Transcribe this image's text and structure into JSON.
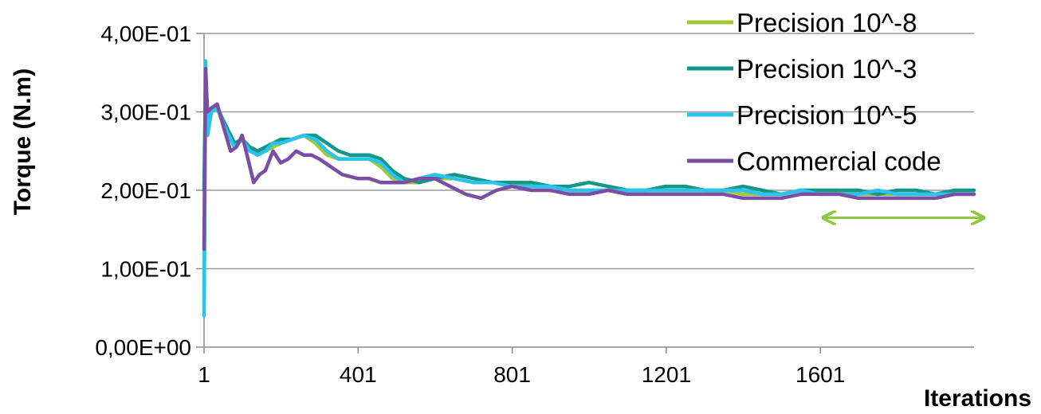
{
  "chart_data": {
    "type": "line",
    "xlabel": "Iterations",
    "ylabel": "Torque (N.m)",
    "xlim": [
      1,
      2000
    ],
    "ylim": [
      0,
      0.4
    ],
    "x_ticks": [
      1,
      401,
      801,
      1201,
      1601
    ],
    "x_tick_labels": [
      "1",
      "401",
      "801",
      "1201",
      "1601"
    ],
    "y_ticks": [
      0,
      0.1,
      0.2,
      0.3,
      0.4
    ],
    "y_tick_labels": [
      "0,00E+00",
      "1,00E-01",
      "2,00E-01",
      "3,00E-01",
      "4,00E-01"
    ],
    "grid": "horizontal",
    "legend_position": "top-right",
    "annotation": {
      "type": "double-arrow",
      "x_range": [
        1600,
        2000
      ],
      "y": 0.165,
      "color": "#8dc63f"
    },
    "series": [
      {
        "name": "Precision 10^-8",
        "color": "#a4c639",
        "x": [
          1,
          5,
          10,
          20,
          35,
          55,
          80,
          100,
          120,
          140,
          160,
          180,
          200,
          230,
          260,
          290,
          320,
          350,
          380,
          400,
          430,
          460,
          490,
          520,
          560,
          600,
          650,
          700,
          750,
          800,
          850,
          900,
          950,
          1000,
          1050,
          1100,
          1150,
          1200,
          1250,
          1300,
          1350,
          1400,
          1450,
          1500,
          1550,
          1600,
          1650,
          1700,
          1750,
          1800,
          1850,
          1900,
          1950,
          2000
        ],
        "y": [
          0.06,
          0.33,
          0.27,
          0.3,
          0.31,
          0.28,
          0.255,
          0.265,
          0.255,
          0.25,
          0.25,
          0.255,
          0.26,
          0.265,
          0.27,
          0.26,
          0.245,
          0.24,
          0.24,
          0.24,
          0.24,
          0.23,
          0.215,
          0.21,
          0.21,
          0.215,
          0.215,
          0.21,
          0.21,
          0.21,
          0.205,
          0.205,
          0.2,
          0.2,
          0.2,
          0.2,
          0.2,
          0.2,
          0.2,
          0.2,
          0.2,
          0.195,
          0.195,
          0.195,
          0.2,
          0.2,
          0.2,
          0.195,
          0.195,
          0.195,
          0.195,
          0.195,
          0.195,
          0.195
        ]
      },
      {
        "name": "Precision 10^-3",
        "color": "#15968a",
        "x": [
          1,
          5,
          10,
          20,
          35,
          55,
          80,
          100,
          120,
          140,
          160,
          180,
          200,
          230,
          260,
          290,
          320,
          350,
          380,
          400,
          430,
          460,
          490,
          520,
          560,
          600,
          650,
          700,
          750,
          800,
          850,
          900,
          950,
          1000,
          1050,
          1100,
          1150,
          1200,
          1250,
          1300,
          1350,
          1400,
          1450,
          1500,
          1550,
          1600,
          1650,
          1700,
          1750,
          1800,
          1850,
          1900,
          1950,
          2000
        ],
        "y": [
          0.2,
          0.34,
          0.28,
          0.3,
          0.305,
          0.285,
          0.26,
          0.265,
          0.255,
          0.25,
          0.255,
          0.26,
          0.265,
          0.265,
          0.27,
          0.27,
          0.26,
          0.25,
          0.245,
          0.245,
          0.245,
          0.24,
          0.225,
          0.215,
          0.21,
          0.215,
          0.22,
          0.215,
          0.21,
          0.21,
          0.21,
          0.205,
          0.205,
          0.21,
          0.205,
          0.2,
          0.2,
          0.205,
          0.205,
          0.2,
          0.2,
          0.205,
          0.2,
          0.195,
          0.2,
          0.2,
          0.2,
          0.2,
          0.195,
          0.2,
          0.2,
          0.195,
          0.2,
          0.2
        ]
      },
      {
        "name": "Precision 10^-5",
        "color": "#29c3ec",
        "x": [
          1,
          5,
          10,
          20,
          35,
          55,
          80,
          100,
          120,
          140,
          160,
          180,
          200,
          230,
          260,
          290,
          320,
          350,
          380,
          400,
          430,
          460,
          490,
          520,
          560,
          600,
          650,
          700,
          750,
          800,
          850,
          900,
          950,
          1000,
          1050,
          1100,
          1150,
          1200,
          1250,
          1300,
          1350,
          1400,
          1450,
          1500,
          1550,
          1600,
          1650,
          1700,
          1750,
          1800,
          1850,
          1900,
          1950,
          2000
        ],
        "y": [
          0.04,
          0.365,
          0.27,
          0.3,
          0.305,
          0.28,
          0.255,
          0.265,
          0.25,
          0.245,
          0.25,
          0.26,
          0.26,
          0.265,
          0.27,
          0.265,
          0.25,
          0.24,
          0.24,
          0.24,
          0.24,
          0.235,
          0.22,
          0.21,
          0.215,
          0.22,
          0.215,
          0.21,
          0.21,
          0.205,
          0.205,
          0.205,
          0.2,
          0.2,
          0.2,
          0.2,
          0.2,
          0.2,
          0.2,
          0.2,
          0.2,
          0.2,
          0.195,
          0.195,
          0.2,
          0.195,
          0.195,
          0.195,
          0.2,
          0.195,
          0.195,
          0.195,
          0.195,
          0.195
        ]
      },
      {
        "name": "Commercial code",
        "color": "#7a4fa3",
        "x": [
          1,
          5,
          10,
          20,
          35,
          55,
          70,
          85,
          100,
          115,
          130,
          145,
          160,
          180,
          200,
          220,
          240,
          260,
          280,
          300,
          330,
          360,
          400,
          430,
          460,
          490,
          520,
          560,
          600,
          640,
          680,
          720,
          760,
          800,
          850,
          900,
          950,
          1000,
          1050,
          1100,
          1150,
          1200,
          1250,
          1300,
          1350,
          1400,
          1450,
          1500,
          1550,
          1600,
          1650,
          1700,
          1750,
          1800,
          1850,
          1900,
          1950,
          2000
        ],
        "y": [
          0.125,
          0.355,
          0.3,
          0.305,
          0.31,
          0.275,
          0.25,
          0.255,
          0.27,
          0.24,
          0.21,
          0.22,
          0.225,
          0.25,
          0.235,
          0.24,
          0.25,
          0.245,
          0.245,
          0.24,
          0.23,
          0.22,
          0.215,
          0.215,
          0.21,
          0.21,
          0.21,
          0.215,
          0.215,
          0.205,
          0.195,
          0.19,
          0.2,
          0.205,
          0.2,
          0.2,
          0.195,
          0.195,
          0.2,
          0.195,
          0.195,
          0.195,
          0.195,
          0.195,
          0.195,
          0.19,
          0.19,
          0.19,
          0.195,
          0.195,
          0.195,
          0.19,
          0.19,
          0.19,
          0.19,
          0.19,
          0.195,
          0.195
        ]
      }
    ]
  }
}
